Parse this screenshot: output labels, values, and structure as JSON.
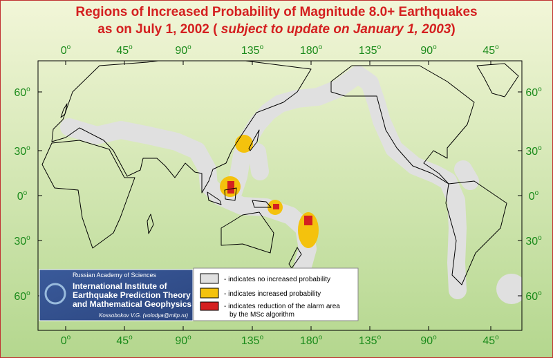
{
  "header": {
    "title_line1": "Regions of Increased Probability of Magnitude 8.0+ Earthquakes",
    "title_line2_prefix": "as on July 1, 2002 ( ",
    "title_line2_italic": "subject to update on January 1, 2003",
    "title_line2_suffix": ")"
  },
  "axes": {
    "longitude_labels": [
      "0",
      "45",
      "90",
      "135",
      "180",
      "135",
      "90",
      "45"
    ],
    "latitude_labels": [
      "60",
      "30",
      "0",
      "30",
      "60"
    ],
    "degree_mark": "o"
  },
  "legend": {
    "items": [
      {
        "label": "- indicates no increased probability"
      },
      {
        "label": "- indicates increased probability"
      },
      {
        "label_lines": [
          "- indicates reduction of the alarm area",
          "by the MSc algorithm"
        ]
      }
    ]
  },
  "institute": {
    "academy": "Russian Academy of Sciences",
    "name_lines": [
      "International Institute of",
      "Earthquake Prediction Theory",
      "and Mathematical Geophysics"
    ],
    "credit": "Kossobokov V.G. (volodya@mitp.ru)"
  }
}
